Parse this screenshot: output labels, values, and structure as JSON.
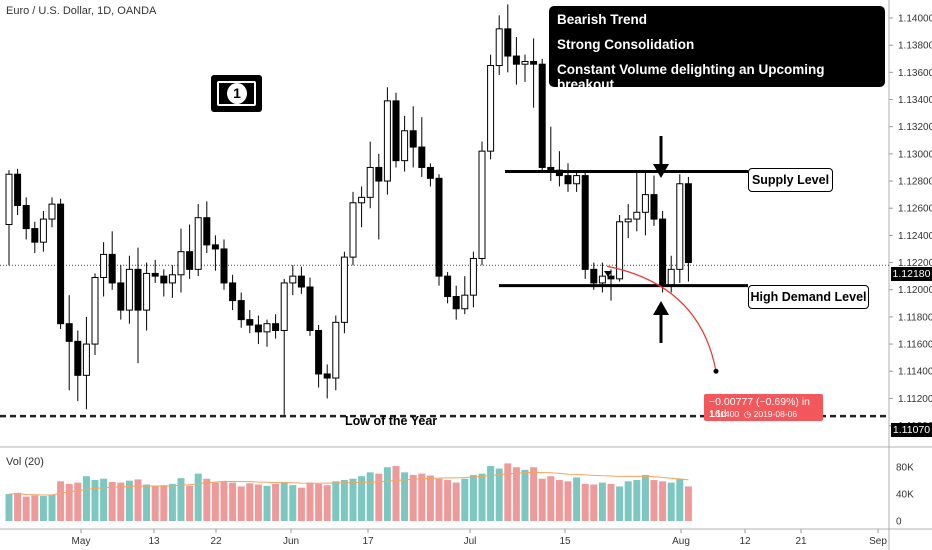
{
  "header": {
    "symbol_title": "Euro / U.S. Dollar, 1D, OANDA",
    "volume_title": "Vol (20)"
  },
  "annotations": {
    "box_lines": [
      "Bearish Trend",
      "Strong Consolidation",
      "Constant Volume delighting an Upcoming breakout"
    ],
    "supply_label": "Supply Level",
    "demand_label": "High Demand Level",
    "low_label": "Low of the Year",
    "projection_line1": "−0.00777 (−0.69%) in 16d",
    "projection_line2": "1.11400",
    "projection_date": "2019-08-06",
    "money_icon": "money-bill-icon",
    "money_glyph": "1"
  },
  "price_tags": {
    "current": "1.12180",
    "low": "1.11070"
  },
  "colors": {
    "up": "#ffffff",
    "down": "#000000",
    "vol_up": "#7cc7bf",
    "vol_down": "#ef9a9a",
    "vol_ma": "#f4a460",
    "projection": "#e53935"
  },
  "chart_data": {
    "type": "candlestick",
    "symbol": "EURUSD",
    "timeframe": "1D",
    "y_range": [
      1.109,
      1.141
    ],
    "y_ticks": [
      1.11,
      1.112,
      1.114,
      1.116,
      1.118,
      1.12,
      1.122,
      1.124,
      1.126,
      1.128,
      1.13,
      1.132,
      1.134,
      1.136,
      1.138,
      1.14
    ],
    "x_ticks": [
      "May",
      "13",
      "22",
      "Jun",
      "17",
      "Jul",
      "15",
      "Aug",
      "12",
      "21",
      "Sep"
    ],
    "volume_ticks": [
      "80K",
      "40K",
      "0"
    ],
    "volume_range": [
      0,
      100000
    ],
    "supply_level": 1.1287,
    "demand_level": 1.1203,
    "year_low": 1.1107,
    "current_price": 1.1218,
    "projection_target": 1.114,
    "candles": [
      {
        "o": 1.1248,
        "h": 1.1288,
        "l": 1.1218,
        "c": 1.1285
      },
      {
        "o": 1.1285,
        "h": 1.1289,
        "l": 1.1255,
        "c": 1.1262
      },
      {
        "o": 1.1262,
        "h": 1.1268,
        "l": 1.1237,
        "c": 1.1245
      },
      {
        "o": 1.1245,
        "h": 1.125,
        "l": 1.1227,
        "c": 1.1235
      },
      {
        "o": 1.1235,
        "h": 1.1258,
        "l": 1.1228,
        "c": 1.1252
      },
      {
        "o": 1.1252,
        "h": 1.1268,
        "l": 1.1246,
        "c": 1.1263
      },
      {
        "o": 1.1263,
        "h": 1.1267,
        "l": 1.1171,
        "c": 1.1175
      },
      {
        "o": 1.1175,
        "h": 1.1196,
        "l": 1.1126,
        "c": 1.1162
      },
      {
        "o": 1.1162,
        "h": 1.117,
        "l": 1.1118,
        "c": 1.1137
      },
      {
        "o": 1.1137,
        "h": 1.118,
        "l": 1.1112,
        "c": 1.116
      },
      {
        "o": 1.116,
        "h": 1.1212,
        "l": 1.1152,
        "c": 1.1209
      },
      {
        "o": 1.1209,
        "h": 1.1235,
        "l": 1.1195,
        "c": 1.1226
      },
      {
        "o": 1.1226,
        "h": 1.1243,
        "l": 1.12,
        "c": 1.1205
      },
      {
        "o": 1.1205,
        "h": 1.1218,
        "l": 1.1178,
        "c": 1.1185
      },
      {
        "o": 1.1185,
        "h": 1.1225,
        "l": 1.1175,
        "c": 1.1215
      },
      {
        "o": 1.1215,
        "h": 1.1231,
        "l": 1.1146,
        "c": 1.1185
      },
      {
        "o": 1.1185,
        "h": 1.122,
        "l": 1.117,
        "c": 1.1212
      },
      {
        "o": 1.1212,
        "h": 1.1222,
        "l": 1.1205,
        "c": 1.121
      },
      {
        "o": 1.121,
        "h": 1.1215,
        "l": 1.1195,
        "c": 1.1205
      },
      {
        "o": 1.1205,
        "h": 1.1218,
        "l": 1.1194,
        "c": 1.1211
      },
      {
        "o": 1.1211,
        "h": 1.1245,
        "l": 1.1198,
        "c": 1.1228
      },
      {
        "o": 1.1228,
        "h": 1.1248,
        "l": 1.1208,
        "c": 1.1215
      },
      {
        "o": 1.1215,
        "h": 1.1263,
        "l": 1.121,
        "c": 1.1253
      },
      {
        "o": 1.1253,
        "h": 1.1265,
        "l": 1.1227,
        "c": 1.1233
      },
      {
        "o": 1.1233,
        "h": 1.124,
        "l": 1.1214,
        "c": 1.123
      },
      {
        "o": 1.123,
        "h": 1.1237,
        "l": 1.12,
        "c": 1.1205
      },
      {
        "o": 1.1205,
        "h": 1.1211,
        "l": 1.1185,
        "c": 1.1192
      },
      {
        "o": 1.1192,
        "h": 1.1198,
        "l": 1.1172,
        "c": 1.1178
      },
      {
        "o": 1.1178,
        "h": 1.1185,
        "l": 1.1168,
        "c": 1.1174
      },
      {
        "o": 1.1174,
        "h": 1.1181,
        "l": 1.116,
        "c": 1.1169
      },
      {
        "o": 1.1169,
        "h": 1.1178,
        "l": 1.1158,
        "c": 1.1175
      },
      {
        "o": 1.1175,
        "h": 1.1182,
        "l": 1.1164,
        "c": 1.117
      },
      {
        "o": 1.117,
        "h": 1.1208,
        "l": 1.1108,
        "c": 1.1205
      },
      {
        "o": 1.1205,
        "h": 1.1218,
        "l": 1.1196,
        "c": 1.121
      },
      {
        "o": 1.121,
        "h": 1.1217,
        "l": 1.1197,
        "c": 1.1202
      },
      {
        "o": 1.1202,
        "h": 1.1209,
        "l": 1.1166,
        "c": 1.117
      },
      {
        "o": 1.117,
        "h": 1.1174,
        "l": 1.1128,
        "c": 1.1138
      },
      {
        "o": 1.1138,
        "h": 1.1145,
        "l": 1.112,
        "c": 1.1135
      },
      {
        "o": 1.1135,
        "h": 1.1181,
        "l": 1.1126,
        "c": 1.1176
      },
      {
        "o": 1.1176,
        "h": 1.1228,
        "l": 1.1168,
        "c": 1.1224
      },
      {
        "o": 1.1224,
        "h": 1.1272,
        "l": 1.1218,
        "c": 1.1264
      },
      {
        "o": 1.1264,
        "h": 1.1276,
        "l": 1.1246,
        "c": 1.1268
      },
      {
        "o": 1.1268,
        "h": 1.1309,
        "l": 1.126,
        "c": 1.129
      },
      {
        "o": 1.129,
        "h": 1.13,
        "l": 1.1237,
        "c": 1.128
      },
      {
        "o": 1.128,
        "h": 1.1349,
        "l": 1.127,
        "c": 1.1339
      },
      {
        "o": 1.1339,
        "h": 1.1345,
        "l": 1.129,
        "c": 1.1295
      },
      {
        "o": 1.1295,
        "h": 1.1328,
        "l": 1.1287,
        "c": 1.1317
      },
      {
        "o": 1.1317,
        "h": 1.1335,
        "l": 1.129,
        "c": 1.1305
      },
      {
        "o": 1.1305,
        "h": 1.1327,
        "l": 1.1283,
        "c": 1.129
      },
      {
        "o": 1.129,
        "h": 1.1293,
        "l": 1.1276,
        "c": 1.1282
      },
      {
        "o": 1.1282,
        "h": 1.1285,
        "l": 1.1203,
        "c": 1.121
      },
      {
        "o": 1.121,
        "h": 1.1213,
        "l": 1.119,
        "c": 1.1195
      },
      {
        "o": 1.1195,
        "h": 1.1203,
        "l": 1.1178,
        "c": 1.1186
      },
      {
        "o": 1.1186,
        "h": 1.121,
        "l": 1.1182,
        "c": 1.1196
      },
      {
        "o": 1.1196,
        "h": 1.1228,
        "l": 1.1187,
        "c": 1.1223
      },
      {
        "o": 1.1223,
        "h": 1.1309,
        "l": 1.1218,
        "c": 1.1302
      },
      {
        "o": 1.1302,
        "h": 1.1373,
        "l": 1.1296,
        "c": 1.1365
      },
      {
        "o": 1.1365,
        "h": 1.1402,
        "l": 1.1358,
        "c": 1.1392
      },
      {
        "o": 1.1392,
        "h": 1.141,
        "l": 1.136,
        "c": 1.1372
      },
      {
        "o": 1.1372,
        "h": 1.1386,
        "l": 1.1351,
        "c": 1.1366
      },
      {
        "o": 1.1366,
        "h": 1.1373,
        "l": 1.1353,
        "c": 1.1368
      },
      {
        "o": 1.1368,
        "h": 1.1385,
        "l": 1.1334,
        "c": 1.1366
      },
      {
        "o": 1.1366,
        "h": 1.137,
        "l": 1.1287,
        "c": 1.129
      },
      {
        "o": 1.129,
        "h": 1.132,
        "l": 1.128,
        "c": 1.1288
      },
      {
        "o": 1.1288,
        "h": 1.1302,
        "l": 1.1276,
        "c": 1.1284
      },
      {
        "o": 1.1284,
        "h": 1.1293,
        "l": 1.1272,
        "c": 1.1278
      },
      {
        "o": 1.1278,
        "h": 1.1287,
        "l": 1.1272,
        "c": 1.1284
      },
      {
        "o": 1.1284,
        "h": 1.1288,
        "l": 1.1208,
        "c": 1.1215
      },
      {
        "o": 1.1215,
        "h": 1.122,
        "l": 1.12,
        "c": 1.1205
      },
      {
        "o": 1.1205,
        "h": 1.122,
        "l": 1.1198,
        "c": 1.121
      },
      {
        "o": 1.121,
        "h": 1.1215,
        "l": 1.1192,
        "c": 1.1208
      },
      {
        "o": 1.1208,
        "h": 1.1255,
        "l": 1.1206,
        "c": 1.125
      },
      {
        "o": 1.125,
        "h": 1.1263,
        "l": 1.1238,
        "c": 1.1252
      },
      {
        "o": 1.1252,
        "h": 1.1287,
        "l": 1.1243,
        "c": 1.1257
      },
      {
        "o": 1.1257,
        "h": 1.1287,
        "l": 1.124,
        "c": 1.127
      },
      {
        "o": 1.127,
        "h": 1.1284,
        "l": 1.1247,
        "c": 1.1252
      },
      {
        "o": 1.1252,
        "h": 1.1258,
        "l": 1.1198,
        "c": 1.1203
      },
      {
        "o": 1.1203,
        "h": 1.1225,
        "l": 1.1198,
        "c": 1.1215
      },
      {
        "o": 1.1215,
        "h": 1.1285,
        "l": 1.1205,
        "c": 1.1278
      },
      {
        "o": 1.1278,
        "h": 1.1283,
        "l": 1.1206,
        "c": 1.122
      }
    ],
    "volume": [
      42000,
      44000,
      38000,
      40000,
      39000,
      41000,
      62000,
      58000,
      60000,
      70000,
      64000,
      66000,
      61000,
      60000,
      63000,
      65000,
      57000,
      54000,
      56000,
      58000,
      67000,
      55000,
      74000,
      66000,
      60000,
      61000,
      60000,
      54000,
      59000,
      57000,
      55000,
      58000,
      61000,
      56000,
      52000,
      60000,
      58000,
      56000,
      62000,
      64000,
      66000,
      70000,
      76000,
      74000,
      84000,
      86000,
      76000,
      72000,
      74000,
      71000,
      66000,
      64000,
      60000,
      66000,
      72000,
      74000,
      86000,
      82000,
      90000,
      84000,
      80000,
      84000,
      66000,
      70000,
      64000,
      62000,
      68000,
      58000,
      57000,
      60000,
      58000,
      54000,
      62000,
      64000,
      72000,
      64000,
      62000,
      60000,
      66000,
      54000
    ]
  }
}
